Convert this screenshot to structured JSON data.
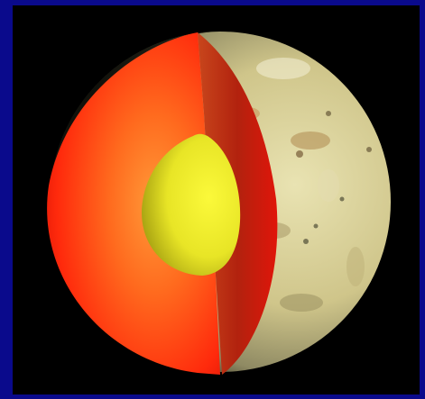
{
  "image": {
    "subject": "",
    "colors": {
      "frame": "#0a0a8c",
      "background": "#000000",
      "mantle_outer": "#ff1a0a",
      "mantle_inner": "#ff8a2a",
      "core": "#f0ef2a",
      "surface": "#d8d19a",
      "terminator": "#1a1a12"
    }
  }
}
